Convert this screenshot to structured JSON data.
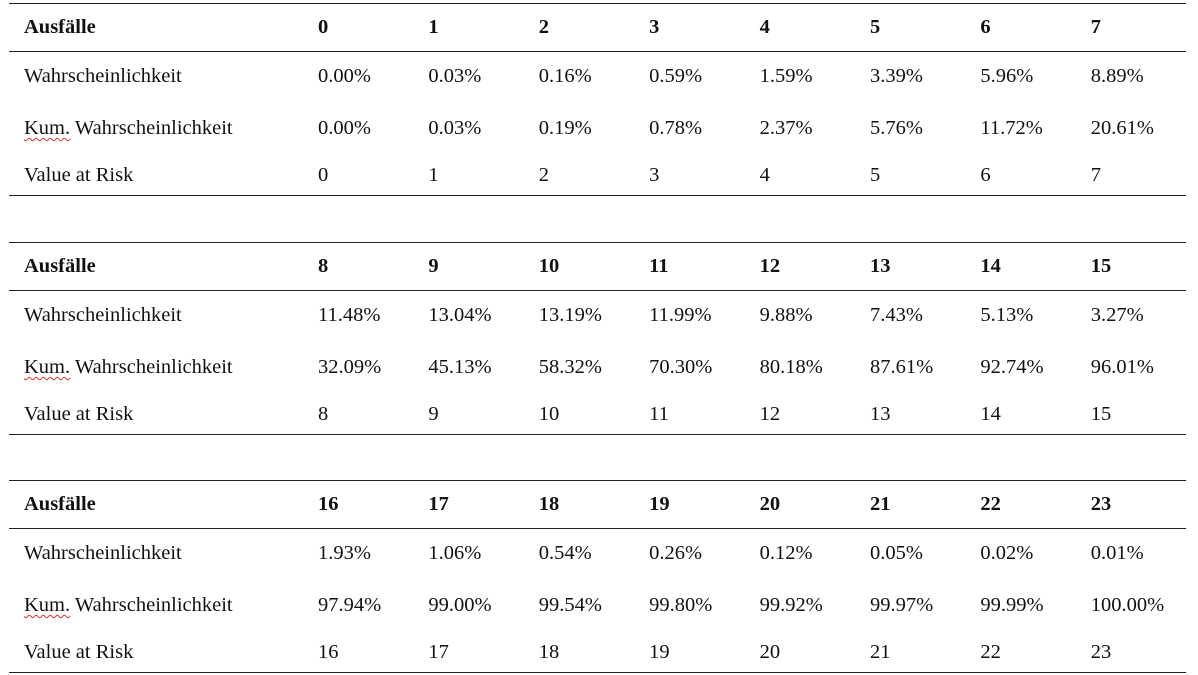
{
  "row_labels": {
    "failures": "Ausfälle",
    "probability": "Wahrscheinlichkeit",
    "cumulative_prefix": "Kum.",
    "cumulative_rest": " Wahrscheinlichkeit",
    "value_at_risk": "Value at Risk"
  },
  "colors": {
    "rule": "#222222",
    "text": "#111111",
    "spellcheck_underline": "#d9302c"
  },
  "tables": [
    {
      "failures": [
        "0",
        "1",
        "2",
        "3",
        "4",
        "5",
        "6",
        "7"
      ],
      "probability": [
        "0.00%",
        "0.03%",
        "0.16%",
        "0.59%",
        "1.59%",
        "3.39%",
        "5.96%",
        "8.89%"
      ],
      "cumulative": [
        "0.00%",
        "0.03%",
        "0.19%",
        "0.78%",
        "2.37%",
        "5.76%",
        "11.72%",
        "20.61%"
      ],
      "value_at_risk": [
        "0",
        "1",
        "2",
        "3",
        "4",
        "5",
        "6",
        "7"
      ]
    },
    {
      "failures": [
        "8",
        "9",
        "10",
        "11",
        "12",
        "13",
        "14",
        "15"
      ],
      "probability": [
        "11.48%",
        "13.04%",
        "13.19%",
        "11.99%",
        "9.88%",
        "7.43%",
        "5.13%",
        "3.27%"
      ],
      "cumulative": [
        "32.09%",
        "45.13%",
        "58.32%",
        "70.30%",
        "80.18%",
        "87.61%",
        "92.74%",
        "96.01%"
      ],
      "value_at_risk": [
        "8",
        "9",
        "10",
        "11",
        "12",
        "13",
        "14",
        "15"
      ]
    },
    {
      "failures": [
        "16",
        "17",
        "18",
        "19",
        "20",
        "21",
        "22",
        "23"
      ],
      "probability": [
        "1.93%",
        "1.06%",
        "0.54%",
        "0.26%",
        "0.12%",
        "0.05%",
        "0.02%",
        "0.01%"
      ],
      "cumulative": [
        "97.94%",
        "99.00%",
        "99.54%",
        "99.80%",
        "99.92%",
        "99.97%",
        "99.99%",
        "100.00%"
      ],
      "value_at_risk": [
        "16",
        "17",
        "18",
        "19",
        "20",
        "21",
        "22",
        "23"
      ]
    }
  ]
}
